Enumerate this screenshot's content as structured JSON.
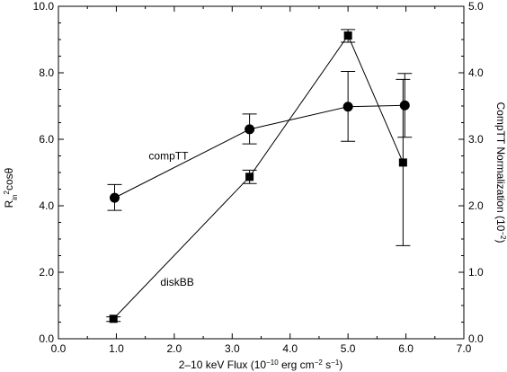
{
  "chart_data": {
    "type": "line",
    "xlabel": {
      "prefix": "2–10 keV Flux (10",
      "exp1": "−10",
      "mid": " erg cm",
      "exp2": "−2",
      "mid2": " s",
      "exp3": "−1",
      "suffix": ")"
    },
    "ylabel_left": {
      "main": "R",
      "sub": "in",
      "sup": "2",
      "suffix": "cosθ"
    },
    "ylabel_right": {
      "prefix": "CompTT Normalization (10",
      "sup": "−2",
      "suffix": ")"
    },
    "xlim": [
      0.0,
      7.0
    ],
    "ylim_left": [
      0.0,
      10.0
    ],
    "ylim_right": [
      0.0,
      5.0
    ],
    "x_ticks": [
      "0.0",
      "1.0",
      "2.0",
      "3.0",
      "4.0",
      "5.0",
      "6.0",
      "7.0"
    ],
    "y_left_ticks": [
      "0.0",
      "2.0",
      "4.0",
      "6.0",
      "8.0",
      "10.0"
    ],
    "y_right_ticks": [
      "0.0",
      "1.0",
      "2.0",
      "3.0",
      "4.0",
      "5.0"
    ],
    "series": [
      {
        "name": "diskBB",
        "axis": "left",
        "marker": "square",
        "points": [
          {
            "x": 0.95,
            "y": 0.6,
            "yerr_low": 0.52,
            "yerr_high": 0.66
          },
          {
            "x": 3.3,
            "y": 4.87,
            "yerr_low": 4.67,
            "yerr_high": 5.07
          },
          {
            "x": 5.0,
            "y": 9.12,
            "yerr_low": 8.92,
            "yerr_high": 9.3
          },
          {
            "x": 5.95,
            "y": 5.3,
            "yerr_low": 2.8,
            "yerr_high": 7.8
          }
        ]
      },
      {
        "name": "compTT",
        "axis": "right",
        "marker": "circle",
        "points": [
          {
            "x": 0.97,
            "y": 2.12,
            "yerr_low": 1.93,
            "yerr_high": 2.32
          },
          {
            "x": 3.3,
            "y": 3.15,
            "yerr_low": 2.93,
            "yerr_high": 3.38
          },
          {
            "x": 5.0,
            "y": 3.49,
            "yerr_low": 2.97,
            "yerr_high": 4.02
          },
          {
            "x": 5.98,
            "y": 3.51,
            "yerr_low": 3.03,
            "yerr_high": 3.99
          }
        ]
      }
    ],
    "annotations": [
      {
        "text": "compTT",
        "x": 1.9,
        "y_left": 5.5
      },
      {
        "text": "diskBB",
        "x": 2.05,
        "y_left": 1.7
      }
    ]
  }
}
